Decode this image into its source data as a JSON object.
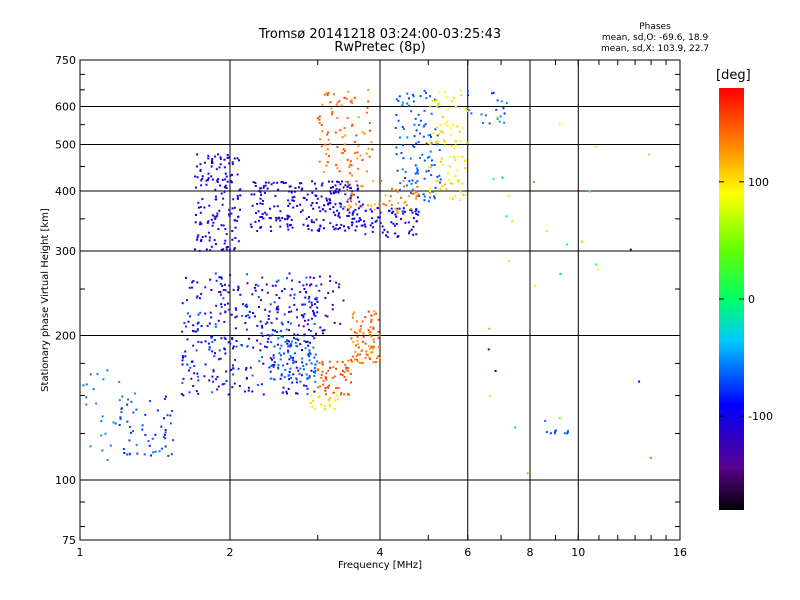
{
  "chart_data": {
    "type": "scatter",
    "title": "Tromsø 20141218 03:24:00-03:25:43",
    "subtitle": "RwPretec (8p)",
    "xlabel": "Frequency [MHz]",
    "ylabel": "Stationary phase Virtual Height [km]",
    "xscale": "log",
    "yscale": "log",
    "xlim": [
      1,
      16
    ],
    "ylim": [
      75,
      750
    ],
    "xticks": [
      1,
      2,
      4,
      6,
      8,
      10,
      16
    ],
    "xtick_labels": [
      "1",
      "2",
      "4",
      "6",
      "8",
      "10",
      "16"
    ],
    "xgrid": [
      2,
      4,
      6,
      8,
      10
    ],
    "yticks": [
      75,
      100,
      200,
      300,
      400,
      500,
      600,
      750
    ],
    "ytick_labels": [
      "75",
      "100",
      "200",
      "300",
      "400",
      "500",
      "600",
      "750"
    ],
    "ygrid": [
      100,
      200,
      300,
      400,
      500,
      600
    ],
    "grid": true,
    "colorbar": {
      "label": "[deg]",
      "range": [
        -180,
        180
      ],
      "ticks": [
        100,
        0,
        -100
      ],
      "tick_labels": [
        "100",
        "0",
        "-100"
      ],
      "colormap": "rainbow (black → purple → blue → cyan → green → yellow → orange → red)"
    },
    "phase_stats": {
      "heading": "Phases",
      "o_mode": "mean, sd,O: -69.6, 18.9",
      "x_mode": "mean, sd,X: 103.9, 22.7"
    },
    "clusters": [
      {
        "f": [
          1.6,
          3.0
        ],
        "h": [
          150,
          270
        ],
        "phase": [
          -130,
          -60
        ],
        "n": 380
      },
      {
        "f": [
          1.2,
          1.55
        ],
        "h": [
          112,
          150
        ],
        "phase": [
          -85,
          -60
        ],
        "n": 55
      },
      {
        "f": [
          1.0,
          1.3
        ],
        "h": [
          110,
          170
        ],
        "phase": [
          -60,
          -50
        ],
        "n": 25
      },
      {
        "f": [
          1.7,
          2.1
        ],
        "h": [
          300,
          480
        ],
        "phase": [
          -125,
          -80
        ],
        "n": 150
      },
      {
        "f": [
          2.2,
          3.7
        ],
        "h": [
          330,
          420
        ],
        "phase": [
          -120,
          -90
        ],
        "n": 230
      },
      {
        "f": [
          3.4,
          4.8
        ],
        "h": [
          320,
          370
        ],
        "phase": [
          -110,
          -80
        ],
        "n": 80
      },
      {
        "f": [
          4.3,
          5.3
        ],
        "h": [
          380,
          650
        ],
        "phase": [
          -75,
          -55
        ],
        "n": 110
      },
      {
        "f": [
          3.0,
          3.9
        ],
        "h": [
          430,
          650
        ],
        "phase": [
          120,
          160
        ],
        "n": 90
      },
      {
        "f": [
          3.3,
          4.8
        ],
        "h": [
          360,
          420
        ],
        "phase": [
          110,
          150
        ],
        "n": 55
      },
      {
        "f": [
          5.0,
          6.0
        ],
        "h": [
          380,
          650
        ],
        "phase": [
          80,
          115
        ],
        "n": 90
      },
      {
        "f": [
          3.5,
          4.0
        ],
        "h": [
          175,
          225
        ],
        "phase": [
          120,
          160
        ],
        "n": 80
      },
      {
        "f": [
          3.0,
          3.5
        ],
        "h": [
          150,
          180
        ],
        "phase": [
          135,
          160
        ],
        "n": 60
      },
      {
        "f": [
          2.9,
          3.3
        ],
        "h": [
          140,
          150
        ],
        "phase": [
          95,
          110
        ],
        "n": 20
      },
      {
        "f": [
          2.8,
          3.4
        ],
        "h": [
          200,
          270
        ],
        "phase": [
          -135,
          -100
        ],
        "n": 40
      },
      {
        "f": [
          2.4,
          3.0
        ],
        "h": [
          160,
          200
        ],
        "phase": [
          -70,
          -55
        ],
        "n": 70
      },
      {
        "f": [
          6.0,
          7.3
        ],
        "h": [
          550,
          650
        ],
        "phase": [
          -85,
          -45
        ],
        "n": 20
      },
      {
        "f": [
          8.6,
          9.6
        ],
        "h": [
          125,
          127
        ],
        "phase": [
          -70,
          -60
        ],
        "n": 10
      },
      {
        "f": [
          6.5,
          14.0
        ],
        "h": [
          85,
          600
        ],
        "phase": [
          -130,
          140
        ],
        "n": 30
      }
    ]
  }
}
